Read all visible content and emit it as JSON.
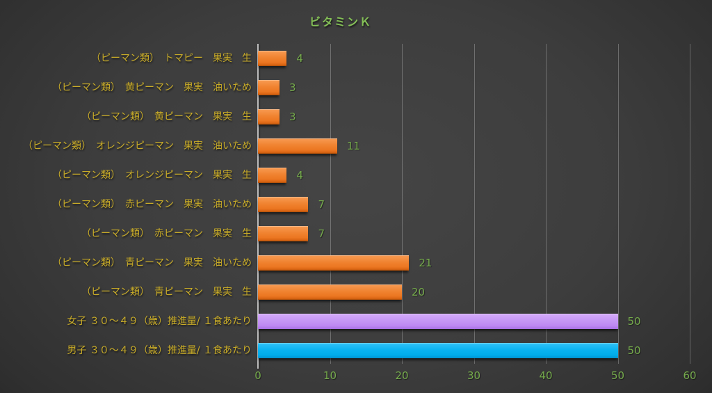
{
  "chart_data": {
    "type": "bar",
    "orientation": "horizontal",
    "title": "ビタミンＫ",
    "xlabel": "",
    "ylabel": "",
    "xlim": [
      0,
      60
    ],
    "xticks": [
      0,
      10,
      20,
      30,
      40,
      50,
      60
    ],
    "grid": true,
    "data_labels": true,
    "legend": false,
    "categories": [
      "（ピーマン類）　トマピー　果実　生",
      "（ピーマン類）　黄ピーマン　果実　油いため",
      "（ピーマン類）　黄ピーマン　果実　生",
      "（ピーマン類）　オレンジピーマン　果実　油いため",
      "（ピーマン類）　オレンジピーマン　果実　生",
      "（ピーマン類）　赤ピーマン　果実　油いため",
      "（ピーマン類）　赤ピーマン　果実　生",
      "（ピーマン類）　青ピーマン　果実　油いため",
      "（ピーマン類）　青ピーマン　果実　生",
      "女子 ３０～４９（歳）推進量/ １食あたり",
      "男子 ３０～４９（歳）推進量/ １食あたり"
    ],
    "values": [
      4,
      3,
      3,
      11,
      4,
      7,
      7,
      21,
      20,
      50,
      50
    ],
    "bar_colors": [
      "orange",
      "orange",
      "orange",
      "orange",
      "orange",
      "orange",
      "orange",
      "orange",
      "orange",
      "purple",
      "blue"
    ]
  },
  "colors": {
    "orange": "#ED7D31",
    "purple": "#C490F4",
    "blue": "#00B0F0",
    "title_text": "#84C057",
    "value_label_text": "#75AA4C",
    "axis_tick_text": "#75AA4C",
    "category_text": "#C9AC28",
    "gridline": "#6E6E6E",
    "axis_line": "#BDBDBD",
    "background_center": "#454545",
    "background_edge": "#161616"
  }
}
